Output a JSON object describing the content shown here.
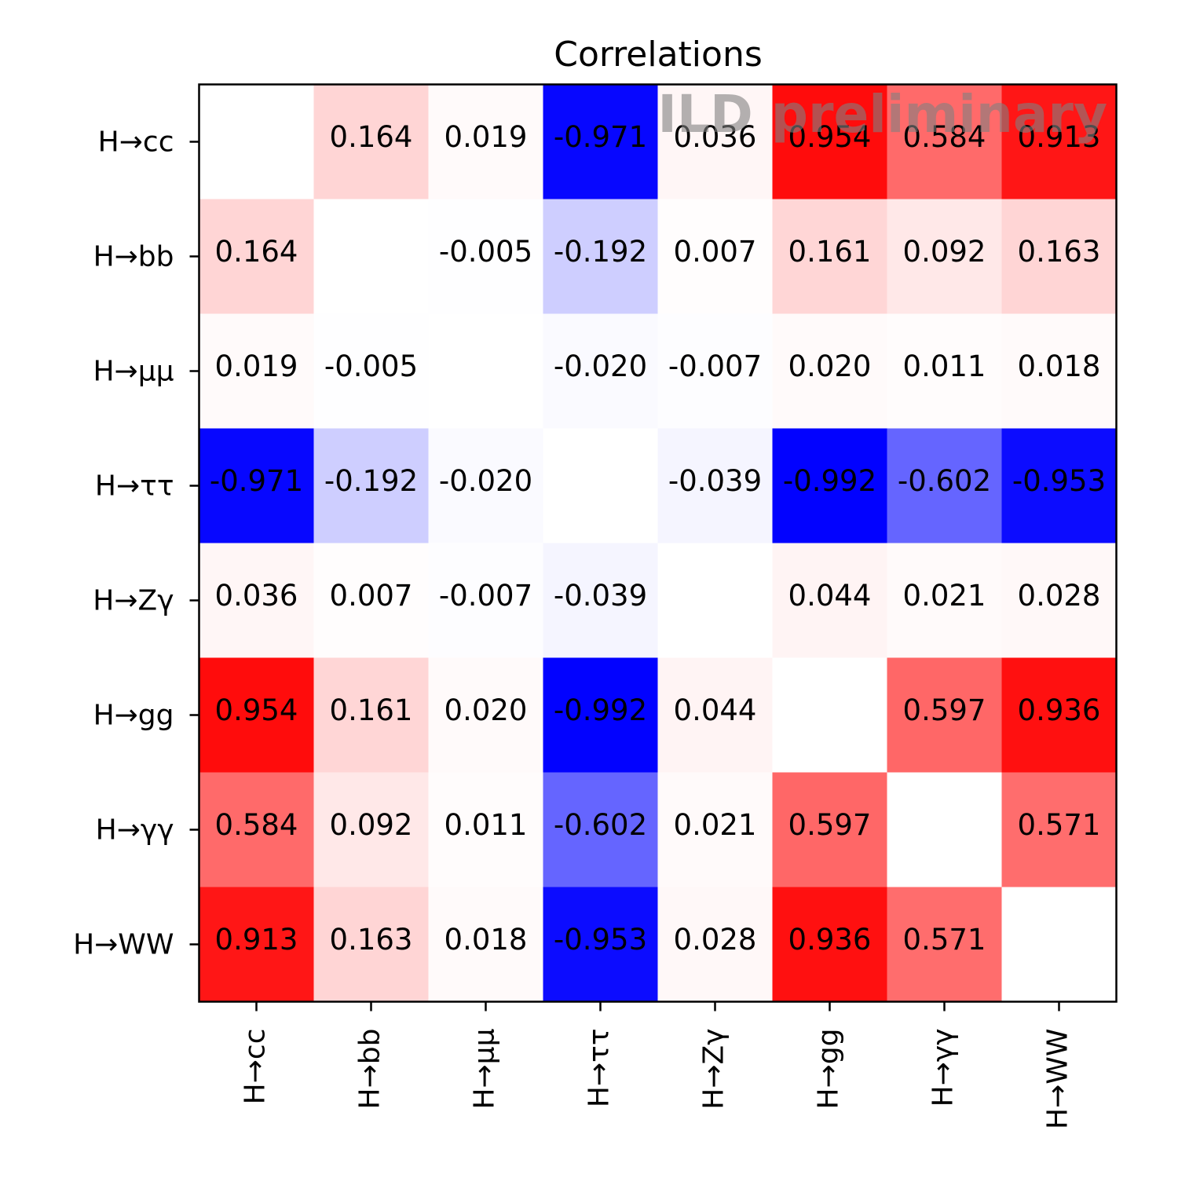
{
  "chart_data": {
    "type": "heatmap",
    "title": "Correlations",
    "watermark": "ILD preliminary",
    "labels": [
      "H→cc",
      "H→bb",
      "H→μμ",
      "H→ττ",
      "H→Zγ",
      "H→gg",
      "H→γγ",
      "H→WW"
    ],
    "x_tick_labels": [
      "H→cc",
      "H→bb",
      "H→μμ",
      "H→ττ",
      "H→Zγ",
      "H→gg",
      "H→γγ",
      "H→WW"
    ],
    "y_tick_labels": [
      "H→cc",
      "H→bb",
      "H→μμ",
      "H→ττ",
      "H→Zγ",
      "H→gg",
      "H→γγ",
      "H→WW"
    ],
    "values": [
      [
        null,
        0.164,
        0.019,
        -0.971,
        0.036,
        0.954,
        0.584,
        0.913
      ],
      [
        0.164,
        null,
        -0.005,
        -0.192,
        0.007,
        0.161,
        0.092,
        0.163
      ],
      [
        0.019,
        -0.005,
        null,
        -0.02,
        -0.007,
        0.02,
        0.011,
        0.018
      ],
      [
        -0.971,
        -0.192,
        -0.02,
        null,
        -0.039,
        -0.992,
        -0.602,
        -0.953
      ],
      [
        0.036,
        0.007,
        -0.007,
        -0.039,
        null,
        0.044,
        0.021,
        0.028
      ],
      [
        0.954,
        0.161,
        0.02,
        -0.992,
        0.044,
        null,
        0.597,
        0.936
      ],
      [
        0.584,
        0.092,
        0.011,
        -0.602,
        0.021,
        0.597,
        null,
        0.571
      ],
      [
        0.913,
        0.163,
        0.018,
        -0.953,
        0.028,
        0.936,
        0.571,
        null
      ]
    ],
    "value_labels": [
      [
        "",
        "0.164",
        "0.019",
        "-0.971",
        "0.036",
        "0.954",
        "0.584",
        "0.913"
      ],
      [
        "0.164",
        "",
        "-0.005",
        "-0.192",
        "0.007",
        "0.161",
        "0.092",
        "0.163"
      ],
      [
        "0.019",
        "-0.005",
        "",
        "-0.020",
        "-0.007",
        "0.020",
        "0.011",
        "0.018"
      ],
      [
        "-0.971",
        "-0.192",
        "-0.020",
        "",
        "-0.039",
        "-0.992",
        "-0.602",
        "-0.953"
      ],
      [
        "0.036",
        "0.007",
        "-0.007",
        "-0.039",
        "",
        "0.044",
        "0.021",
        "0.028"
      ],
      [
        "0.954",
        "0.161",
        "0.020",
        "-0.992",
        "0.044",
        "",
        "0.597",
        "0.936"
      ],
      [
        "0.584",
        "0.092",
        "0.011",
        "-0.602",
        "0.021",
        "0.597",
        "",
        "0.571"
      ],
      [
        "0.913",
        "0.163",
        "0.018",
        "-0.953",
        "0.028",
        "0.936",
        "0.571",
        ""
      ]
    ],
    "colormap": "bwr",
    "vmin": -1,
    "vmax": 1,
    "colors": {
      "negative": "#0000ff",
      "zero": "#ffffff",
      "positive": "#ff0000"
    },
    "grid": false,
    "x_tick_rotation": "vertical"
  }
}
